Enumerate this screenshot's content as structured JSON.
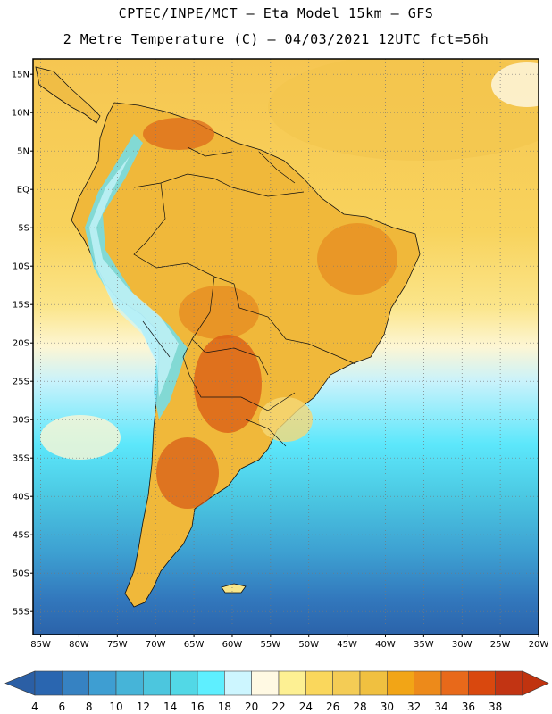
{
  "header": {
    "line1": "CPTEC/INPE/MCT –  Eta Model 15km – GFS",
    "line2": "2 Metre Temperature (C) – 04/03/2021 12UTC fct=56h"
  },
  "map": {
    "lon_range": [
      -86,
      -20
    ],
    "lat_range": [
      -58,
      17
    ],
    "lat_ticks": [
      "15N",
      "10N",
      "5N",
      "EQ",
      "5S",
      "10S",
      "15S",
      "20S",
      "25S",
      "30S",
      "35S",
      "40S",
      "45S",
      "50S",
      "55S"
    ],
    "lat_values": [
      15,
      10,
      5,
      0,
      -5,
      -10,
      -15,
      -20,
      -25,
      -30,
      -35,
      -40,
      -45,
      -50,
      -55
    ],
    "lon_ticks": [
      "85W",
      "80W",
      "75W",
      "70W",
      "65W",
      "60W",
      "55W",
      "50W",
      "45W",
      "40W",
      "35W",
      "30W",
      "25W",
      "20W"
    ],
    "lon_values": [
      -85,
      -80,
      -75,
      -70,
      -65,
      -60,
      -55,
      -50,
      -45,
      -40,
      -35,
      -30,
      -25,
      -20
    ]
  },
  "colorbar": {
    "labels": [
      "4",
      "6",
      "8",
      "10",
      "12",
      "14",
      "16",
      "18",
      "20",
      "22",
      "24",
      "26",
      "28",
      "30",
      "32",
      "34",
      "36",
      "38"
    ],
    "colors": [
      "#2a66b0",
      "#3682c2",
      "#3e9ed2",
      "#46b4d8",
      "#4cc6de",
      "#52d8e6",
      "#5eefff",
      "#cdf6ff",
      "#fff9e3",
      "#fdf093",
      "#fad75c",
      "#f4cc55",
      "#f0c040",
      "#f2a516",
      "#ed8a1a",
      "#e8691a",
      "#d9480e",
      "#c23413"
    ],
    "below_color": "#2b5fa5",
    "above_color": "#c0330f"
  }
}
